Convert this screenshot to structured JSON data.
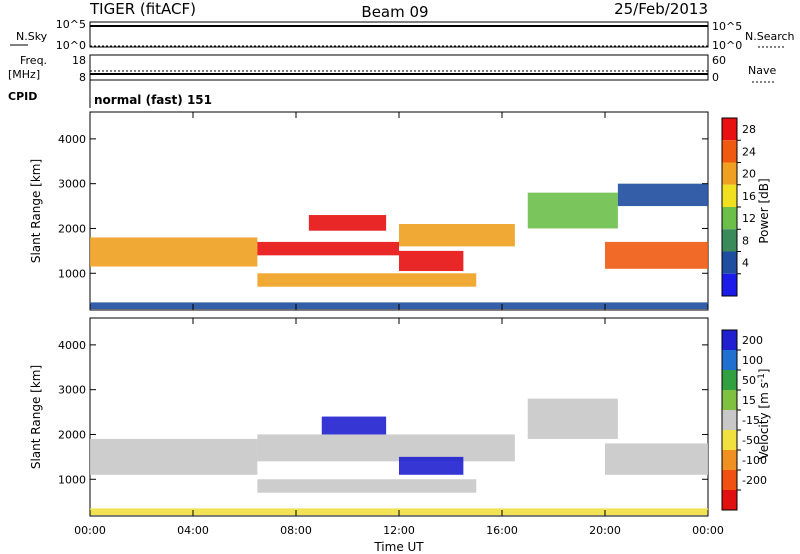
{
  "header": {
    "left": "TIGER (fitACF)",
    "center": "Beam 09",
    "right": "25/Feb/2013"
  },
  "colors": {
    "power": [
      "#1c1ce8",
      "#1f4da0",
      "#3b8a5a",
      "#6cc04a",
      "#f0e020",
      "#f0a020",
      "#f05a10",
      "#e81010"
    ],
    "velocity": [
      "#2020d0",
      "#2070d0",
      "#30a040",
      "#80c040",
      "#c8c8c8",
      "#f0e040",
      "#f09020",
      "#f05010",
      "#e01010"
    ]
  },
  "chart_data": [
    {
      "type": "line",
      "panel": "nsky",
      "ylabel_main": "N.Sky",
      "ylabel_right": "N.Search",
      "yticks_left": [
        "10^5",
        "10^0"
      ],
      "yticks_right": [
        "10^5",
        "10^0"
      ],
      "x": [
        0,
        24
      ],
      "series": [
        {
          "name": "N.Sky",
          "values": [
            100000,
            100000
          ]
        },
        {
          "name": "N.Search",
          "values": [
            1,
            1
          ]
        }
      ]
    },
    {
      "type": "line",
      "panel": "freq",
      "ylabel_main": "Freq.",
      "ylabel_unit": "[MHz]",
      "ylabel_right": "Nave",
      "yticks_left": [
        "18",
        "8"
      ],
      "yticks_right": [
        "60",
        "0"
      ],
      "x": [
        0,
        24
      ],
      "series": [
        {
          "name": "Freq.",
          "values": [
            11,
            11
          ]
        },
        {
          "name": "Nave",
          "values": [
            20,
            20
          ]
        }
      ]
    },
    {
      "type": "table",
      "panel": "cpid",
      "label": "CPID",
      "value": "normal (fast) 151"
    },
    {
      "type": "heatmap",
      "panel": "power",
      "ylabel": "Slant Range [km]",
      "yticks": [
        1000,
        2000,
        3000,
        4000
      ],
      "ylim": [
        180,
        4600
      ],
      "xlim": [
        0,
        24
      ],
      "colorbar_label": "Power [dB]",
      "colorbar_ticks": [
        "28",
        "24",
        "20",
        "16",
        "12",
        "8",
        "4"
      ],
      "bands": [
        {
          "t0": 0.0,
          "t1": 6.5,
          "r0": 1150,
          "r1": 1800,
          "level": 5
        },
        {
          "t0": 6.5,
          "t1": 12.0,
          "r0": 1400,
          "r1": 1700,
          "level": 7
        },
        {
          "t0": 12.0,
          "t1": 16.5,
          "r0": 1600,
          "r1": 2100,
          "level": 5
        },
        {
          "t0": 8.5,
          "t1": 11.5,
          "r0": 1950,
          "r1": 2300,
          "level": 7
        },
        {
          "t0": 6.5,
          "t1": 15.0,
          "r0": 700,
          "r1": 1000,
          "level": 5
        },
        {
          "t0": 12.0,
          "t1": 14.5,
          "r0": 1050,
          "r1": 1500,
          "level": 7
        },
        {
          "t0": 20.0,
          "t1": 24.0,
          "r0": 1100,
          "r1": 1700,
          "level": 6
        },
        {
          "t0": 17.0,
          "t1": 20.5,
          "r0": 2000,
          "r1": 2800,
          "level": 3
        },
        {
          "t0": 20.5,
          "t1": 24.0,
          "r0": 2500,
          "r1": 3000,
          "level": 1
        },
        {
          "t0": 0.0,
          "t1": 24.0,
          "r0": 200,
          "r1": 350,
          "level": 1
        }
      ]
    },
    {
      "type": "heatmap",
      "panel": "velocity",
      "ylabel": "Slant Range [km]",
      "yticks": [
        1000,
        2000,
        3000,
        4000
      ],
      "ylim": [
        180,
        4600
      ],
      "xlim": [
        0,
        24
      ],
      "xticks": [
        "00:00",
        "04:00",
        "08:00",
        "12:00",
        "16:00",
        "20:00",
        "00:00"
      ],
      "xlabel": "Time UT",
      "colorbar_label": "Velocity [m s",
      "colorbar_sup": "-1",
      "colorbar_ticks": [
        "200",
        "100",
        "50",
        "15",
        "-15",
        "-50",
        "-100",
        "-200"
      ],
      "bands": [
        {
          "t0": 0.0,
          "t1": 6.5,
          "r0": 1100,
          "r1": 1900,
          "level": 4
        },
        {
          "t0": 6.5,
          "t1": 16.5,
          "r0": 1400,
          "r1": 2000,
          "level": 4
        },
        {
          "t0": 6.5,
          "t1": 15.0,
          "r0": 700,
          "r1": 1000,
          "level": 4
        },
        {
          "t0": 9.0,
          "t1": 11.5,
          "r0": 2000,
          "r1": 2400,
          "level": 0
        },
        {
          "t0": 12.0,
          "t1": 14.5,
          "r0": 1100,
          "r1": 1500,
          "level": 0
        },
        {
          "t0": 20.0,
          "t1": 24.0,
          "r0": 1100,
          "r1": 1800,
          "level": 4
        },
        {
          "t0": 17.0,
          "t1": 20.5,
          "r0": 1900,
          "r1": 2800,
          "level": 4
        },
        {
          "t0": 0.0,
          "t1": 24.0,
          "r0": 200,
          "r1": 350,
          "level": 5
        }
      ]
    }
  ]
}
